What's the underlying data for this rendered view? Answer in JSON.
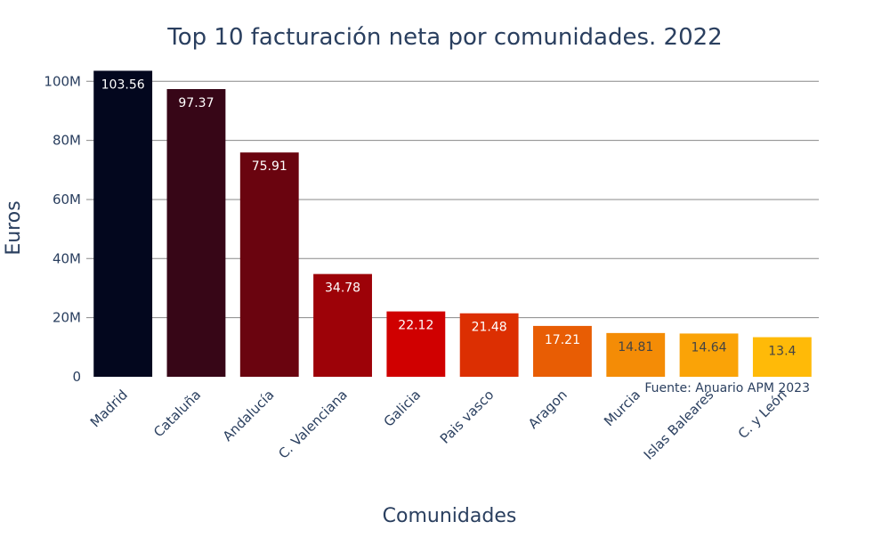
{
  "chart_data": {
    "type": "bar",
    "title": "Top 10 facturación neta por comunidades. 2022",
    "xlabel": "Comunidades",
    "ylabel": "Euros",
    "categories": [
      "Madrid",
      "Cataluña",
      "Andalucía",
      "C. Valenciana",
      "Galicia",
      "Pais vasco",
      "Aragon",
      "Murcia",
      "Islas Baleares",
      "C. y León"
    ],
    "values": [
      103.56,
      97.37,
      75.91,
      34.78,
      22.12,
      21.48,
      17.21,
      14.81,
      14.64,
      13.4
    ],
    "data_labels": [
      "103.56",
      "97.37",
      "75.91",
      "34.78",
      "22.12",
      "21.48",
      "17.21",
      "14.81",
      "14.64",
      "13.4"
    ],
    "yticks": [
      0,
      20,
      40,
      60,
      80,
      100
    ],
    "ytick_labels": [
      "0",
      "20M",
      "40M",
      "60M",
      "80M",
      "100M"
    ],
    "ylim": [
      0,
      104
    ],
    "grid": true,
    "colors": [
      "#03071e",
      "#370617",
      "#6a040f",
      "#9d0208",
      "#d00000",
      "#dc2f02",
      "#e85d04",
      "#f48c06",
      "#faa307",
      "#ffba08"
    ],
    "label_colors": [
      "#ffffff",
      "#ffffff",
      "#ffffff",
      "#ffffff",
      "#ffffff",
      "#ffffff",
      "#ffffff",
      "#444444",
      "#444444",
      "#444444"
    ],
    "annotation": "Fuente: Anuario APM 2023"
  }
}
